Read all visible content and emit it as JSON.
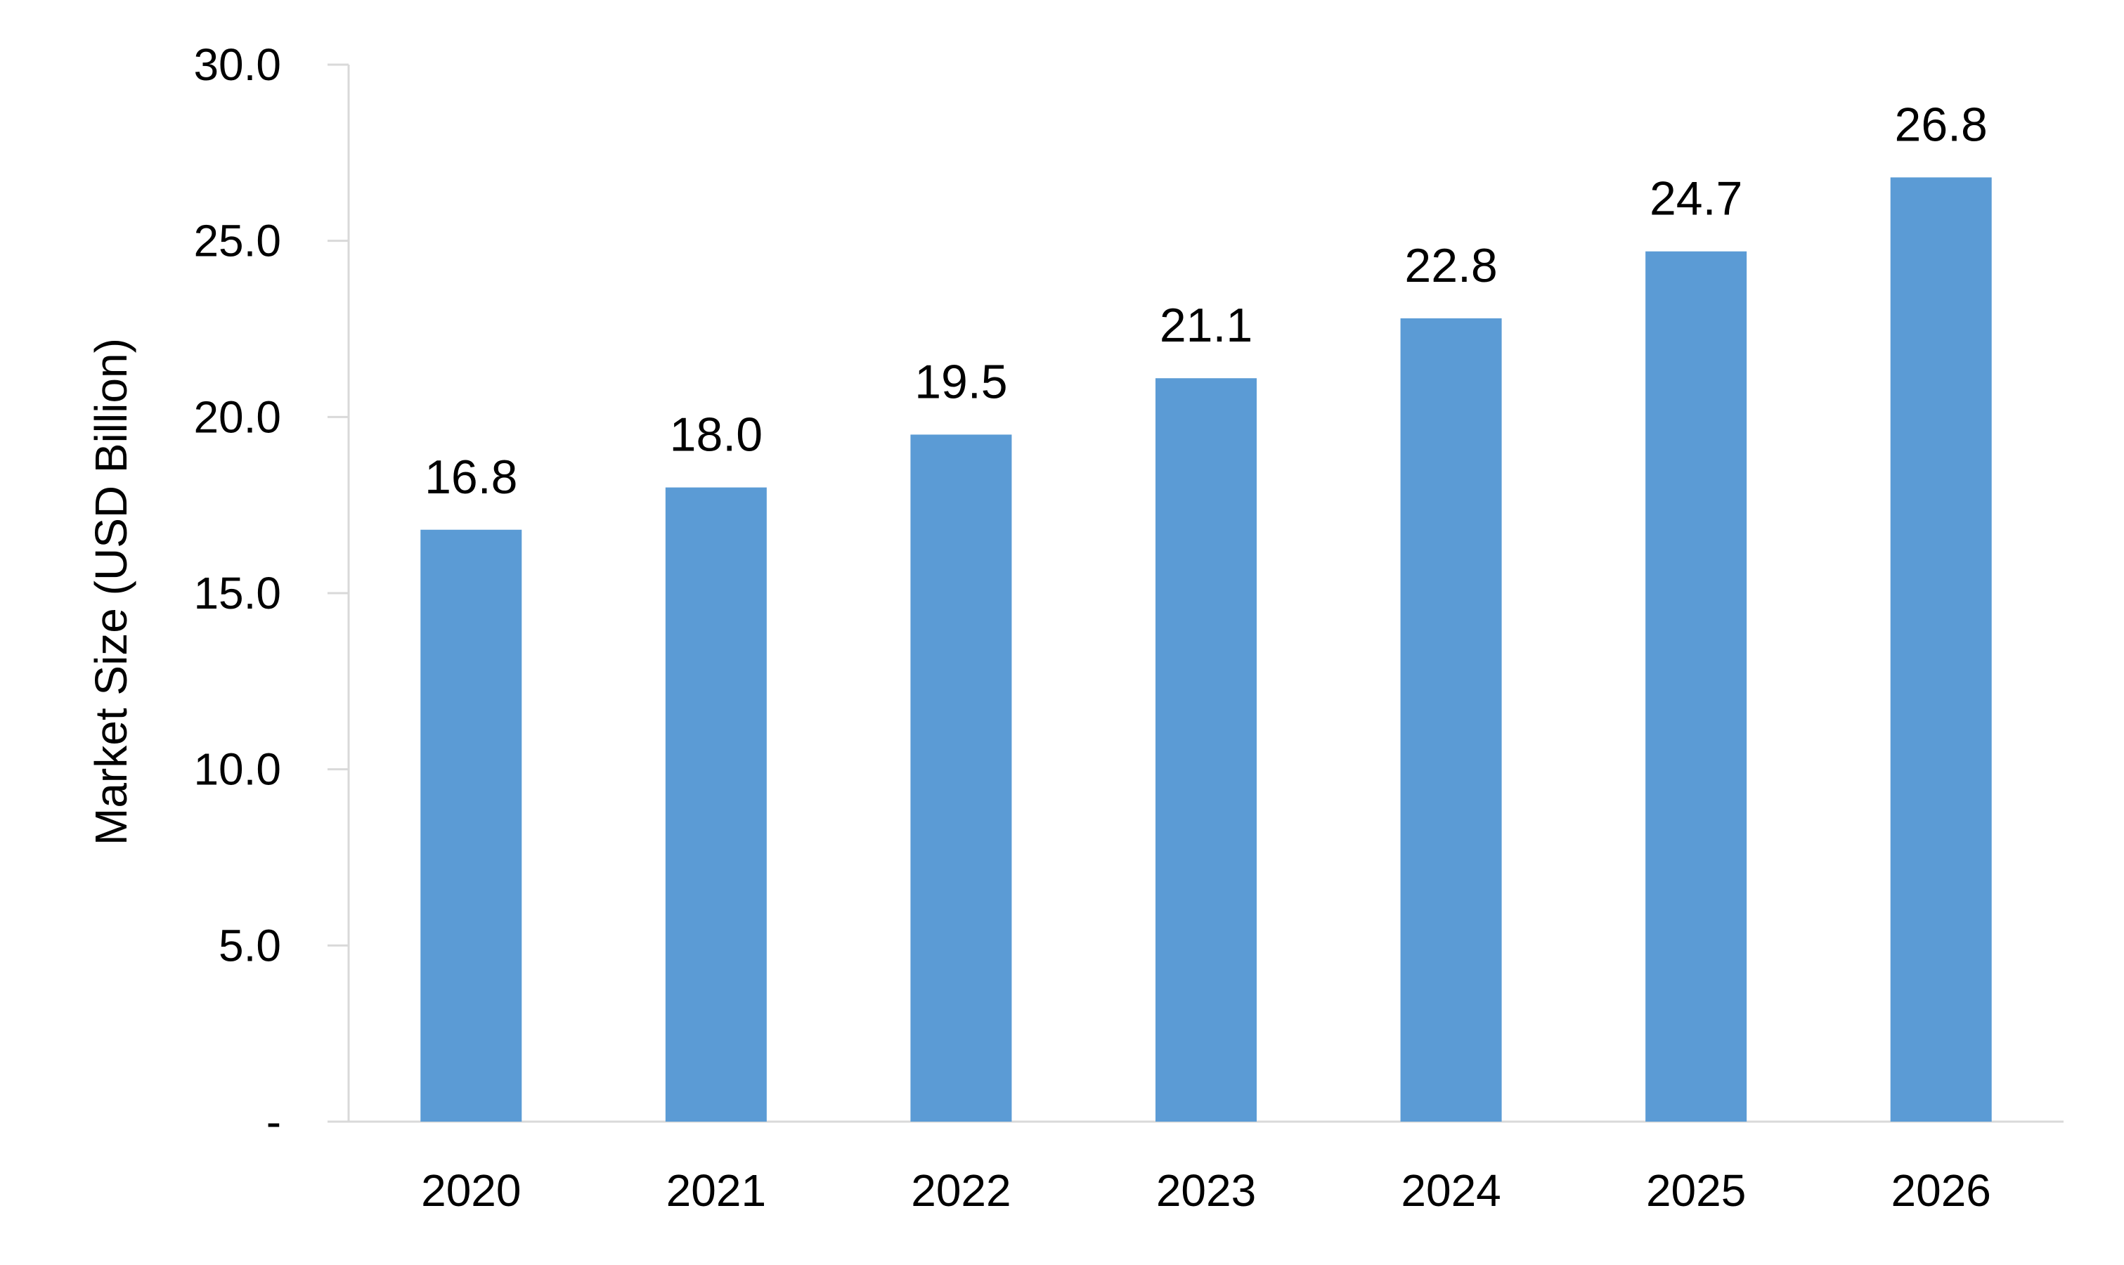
{
  "chart_data": {
    "type": "bar",
    "title": "",
    "xlabel": "",
    "ylabel": "Market Size (USD Billion)",
    "categories": [
      "2020",
      "2021",
      "2022",
      "2023",
      "2024",
      "2025",
      "2026"
    ],
    "series": [
      {
        "values": [
          16.8,
          18.0,
          19.5,
          21.1,
          22.8,
          24.7,
          26.8
        ],
        "value_labels": [
          "16.8",
          "18.0",
          "19.5",
          "21.1",
          "22.8",
          "24.7",
          "26.8"
        ],
        "color": "#5b9bd5"
      }
    ],
    "ylim": [
      0,
      30
    ],
    "yticks": [
      0,
      5,
      10,
      15,
      20,
      25,
      30
    ],
    "ytick_labels": [
      "-",
      "5.0",
      "10.0",
      "15.0",
      "20.0",
      "25.0",
      "30.0"
    ],
    "grid": false,
    "legend": "none",
    "axis_color": "#d9d9d9"
  }
}
